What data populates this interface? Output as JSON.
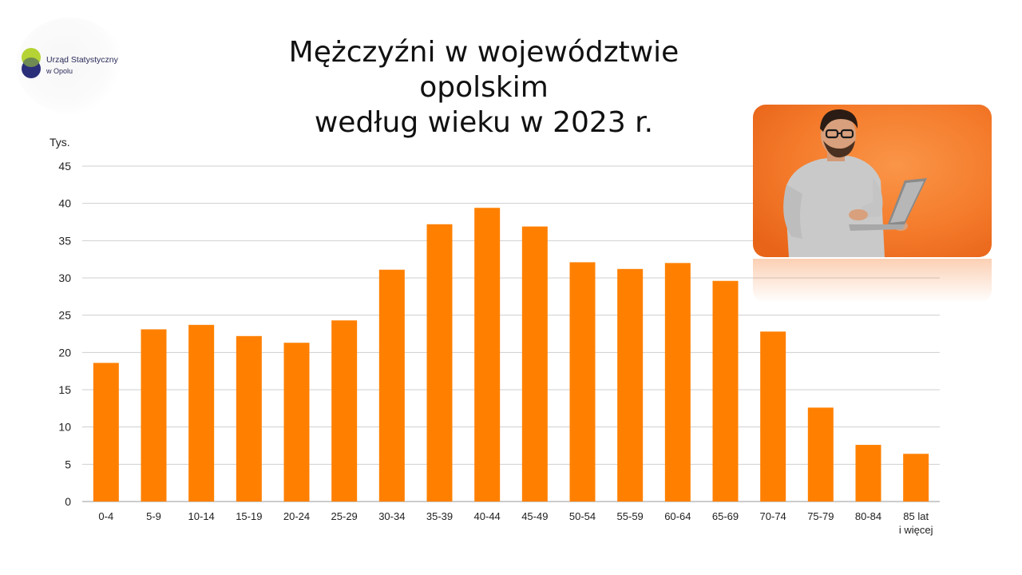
{
  "logo": {
    "line1": "Urząd Statystyczny",
    "line2": "w Opolu",
    "colors": {
      "green": "#b5d334",
      "navy": "#2b2f7a"
    }
  },
  "title": {
    "line1": "Mężczyźni w województwie opolskim",
    "line2": "według wieku w 2023 r."
  },
  "photo": {
    "icon": "man-with-laptop-photo",
    "background": "#f47a2a"
  },
  "chart_data": {
    "type": "bar",
    "title": "Mężczyźni w województwie opolskim według wieku w 2023 r.",
    "ylabel": "Tys.",
    "xlabel": "",
    "ylim": [
      0,
      45
    ],
    "yticks": [
      "0",
      "5",
      "10",
      "15",
      "20",
      "25",
      "30",
      "35",
      "40",
      "45"
    ],
    "grid": true,
    "bar_color": "#ff8000",
    "categories": [
      "0-4",
      "5-9",
      "10-14",
      "15-19",
      "20-24",
      "25-29",
      "30-34",
      "35-39",
      "40-44",
      "45-49",
      "50-54",
      "55-59",
      "60-64",
      "65-69",
      "70-74",
      "75-79",
      "80-84",
      "85 lat i więcej"
    ],
    "category_lines": [
      [
        "0-4"
      ],
      [
        "5-9"
      ],
      [
        "10-14"
      ],
      [
        "15-19"
      ],
      [
        "20-24"
      ],
      [
        "25-29"
      ],
      [
        "30-34"
      ],
      [
        "35-39"
      ],
      [
        "40-44"
      ],
      [
        "45-49"
      ],
      [
        "50-54"
      ],
      [
        "55-59"
      ],
      [
        "60-64"
      ],
      [
        "65-69"
      ],
      [
        "70-74"
      ],
      [
        "75-79"
      ],
      [
        "80-84"
      ],
      [
        "85 lat",
        "i więcej"
      ]
    ],
    "values": [
      18.6,
      23.1,
      23.7,
      22.2,
      21.3,
      24.3,
      31.1,
      37.2,
      39.4,
      36.9,
      32.1,
      31.2,
      32.0,
      29.6,
      22.8,
      12.6,
      7.6,
      6.4
    ]
  }
}
